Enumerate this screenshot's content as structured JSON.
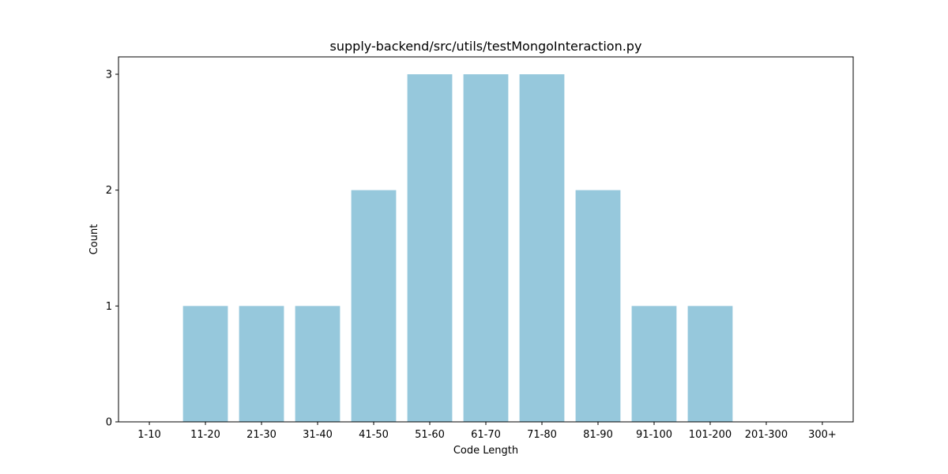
{
  "chart_data": {
    "type": "bar",
    "title": "supply-backend/src/utils/testMongoInteraction.py",
    "xlabel": "Code Length",
    "ylabel": "Count",
    "categories": [
      "1-10",
      "11-20",
      "21-30",
      "31-40",
      "41-50",
      "51-60",
      "61-70",
      "71-80",
      "81-90",
      "91-100",
      "101-200",
      "201-300",
      "300+"
    ],
    "values": [
      0,
      1,
      1,
      1,
      2,
      3,
      3,
      3,
      2,
      1,
      1,
      0,
      0
    ],
    "ylim": [
      0,
      3.15
    ],
    "yticks": [
      0,
      1,
      2,
      3
    ],
    "grid": false,
    "bar_color": "#96c8dc"
  }
}
